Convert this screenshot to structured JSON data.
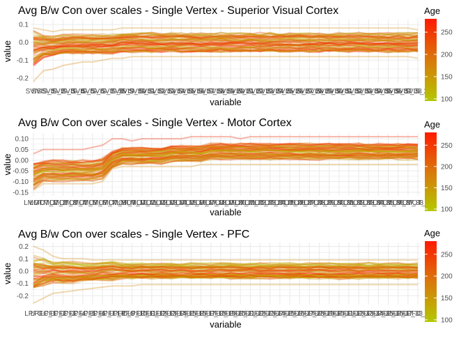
{
  "colors": {
    "low": "#b4c800",
    "mid": "#d9780c",
    "high": "#ff1a00",
    "grid": "#ebebeb"
  },
  "chart_data": [
    {
      "type": "line",
      "title": "Avg B/w Con over scales - Single Vertex - Superior Visual Cortex",
      "xlabel": "variable",
      "ylabel": "value",
      "ylim": [
        -0.22,
        0.12
      ],
      "yticks": [
        0.1,
        0.0,
        -0.1,
        -0.2
      ],
      "ytick_labels": [
        "0.1",
        "0.0",
        "-0.1",
        "-0.2"
      ],
      "x_count": 40,
      "x_tick_labels": [
        "SVIS",
        "SVIS_1",
        "SVIS_2",
        "SVIS_3",
        "SVIS_4",
        "SVIS_5",
        "SVIS_6",
        "SVIS_7",
        "SVIS_8",
        "SVIS_9",
        "SVIS_10",
        "SVIS_11",
        "SVIS_12",
        "SVIS_13",
        "SVIS_14",
        "SVIS_15",
        "SVIS_16",
        "SVIS_17",
        "SVIS_18",
        "SVIS_19",
        "SVIS_20",
        "SVIS_21",
        "SVIS_22",
        "SVIS_23",
        "SVIS_24",
        "SVIS_25",
        "SVIS_26",
        "SVIS_27",
        "SVIS_28",
        "SVIS_29",
        "SVIS_30",
        "SVIS_31",
        "SVIS_32",
        "SVIS_33",
        "SVIS_34",
        "SVIS_35",
        "SVIS_36",
        "SVIS_37",
        "SVIS_38",
        "SVIS_29"
      ],
      "color_legend": {
        "title": "Age",
        "range": [
          95,
          280
        ],
        "ticks": [
          100,
          150,
          200,
          250
        ]
      },
      "series_summary": {
        "count": 55,
        "center": [
          -0.03,
          -0.02,
          -0.02,
          -0.01,
          -0.01,
          -0.01,
          -0.01,
          -0.01,
          -0.01,
          0.0,
          0.0,
          0.0,
          0.0,
          0.0,
          0.0,
          0.0,
          0.0,
          0.0,
          0.0,
          0.0,
          0.0,
          0.0,
          0.0,
          0.0,
          0.0,
          0.0,
          0.0,
          0.0,
          0.0,
          0.0,
          0.0,
          0.0,
          0.0,
          0.0,
          0.0,
          0.0,
          0.0,
          0.0,
          0.0,
          0.0
        ],
        "spread": [
          0.09,
          0.06,
          0.05,
          0.05,
          0.05,
          0.05,
          0.05,
          0.05,
          0.05,
          0.05,
          0.05,
          0.05,
          0.05,
          0.05,
          0.05,
          0.05,
          0.05,
          0.05,
          0.05,
          0.05,
          0.05,
          0.05,
          0.05,
          0.05,
          0.05,
          0.05,
          0.05,
          0.05,
          0.05,
          0.05,
          0.05,
          0.05,
          0.05,
          0.05,
          0.05,
          0.05,
          0.05,
          0.05,
          0.05,
          0.05
        ],
        "min": [
          -0.22,
          -0.16,
          -0.15,
          -0.13,
          -0.12,
          -0.11,
          -0.11,
          -0.1,
          -0.09,
          -0.09,
          -0.08,
          -0.08,
          -0.08,
          -0.08,
          -0.08,
          -0.08,
          -0.08,
          -0.08,
          -0.08,
          -0.08,
          -0.08,
          -0.08,
          -0.08,
          -0.08,
          -0.08,
          -0.08,
          -0.08,
          -0.08,
          -0.08,
          -0.08,
          -0.08,
          -0.08,
          -0.08,
          -0.08,
          -0.08,
          -0.08,
          -0.08,
          -0.08,
          -0.08,
          -0.09
        ],
        "max": [
          0.08,
          0.07,
          0.06,
          0.07,
          0.07,
          0.07,
          0.07,
          0.07,
          0.07,
          0.08,
          0.08,
          0.08,
          0.08,
          0.08,
          0.08,
          0.08,
          0.08,
          0.08,
          0.08,
          0.08,
          0.08,
          0.08,
          0.08,
          0.08,
          0.08,
          0.08,
          0.08,
          0.08,
          0.08,
          0.08,
          0.08,
          0.08,
          0.08,
          0.08,
          0.08,
          0.08,
          0.08,
          0.08,
          0.08,
          0.07
        ]
      }
    },
    {
      "type": "line",
      "title": "Avg B/w Con over scales - Single Vertex - Motor Cortex",
      "xlabel": "variable",
      "ylabel": "value",
      "ylim": [
        -0.16,
        0.12
      ],
      "yticks": [
        0.1,
        0.05,
        0.0,
        -0.05,
        -0.1,
        -0.15
      ],
      "ytick_labels": [
        "0.10",
        "0.05",
        "0.00",
        "-0.05",
        "-0.10",
        "-0.15"
      ],
      "x_count": 40,
      "x_tick_labels": [
        "LMOT",
        "LMOT_1",
        "LMOT_2",
        "LMOT_3",
        "LMOT_4",
        "LMOT_5",
        "LMOT_6",
        "LMOT_7",
        "LMOT_8",
        "LMOT_9",
        "LMOT_10",
        "LMOT_11",
        "LMOT_12",
        "LMOT_13",
        "LMOT_14",
        "LMOT_15",
        "LMOT_16",
        "LMOT_17",
        "LMOT_18",
        "LMOT_19",
        "LMOT_20",
        "LMOT_21",
        "LMOT_22",
        "LMOT_23",
        "LMOT_24",
        "LMOT_25",
        "LMOT_26",
        "LMOT_27",
        "LMOT_28",
        "LMOT_29",
        "LMOT_30",
        "LMOT_31",
        "LMOT_32",
        "LMOT_33",
        "LMOT_34",
        "LMOT_35",
        "LMOT_36",
        "LMOT_37",
        "LMOT_38",
        "LMOT_29"
      ],
      "color_legend": {
        "title": "Age",
        "range": [
          95,
          280
        ],
        "ticks": [
          100,
          150,
          200,
          250
        ]
      },
      "series_summary": {
        "count": 55,
        "center": [
          -0.07,
          -0.05,
          -0.05,
          -0.05,
          -0.05,
          -0.05,
          -0.05,
          -0.04,
          0.0,
          0.02,
          0.02,
          0.02,
          0.02,
          0.02,
          0.03,
          0.03,
          0.03,
          0.03,
          0.04,
          0.04,
          0.04,
          0.04,
          0.04,
          0.04,
          0.04,
          0.04,
          0.04,
          0.04,
          0.04,
          0.04,
          0.04,
          0.04,
          0.04,
          0.04,
          0.04,
          0.04,
          0.04,
          0.04,
          0.04,
          0.04
        ],
        "spread": [
          0.06,
          0.045,
          0.045,
          0.045,
          0.045,
          0.045,
          0.045,
          0.045,
          0.04,
          0.035,
          0.035,
          0.035,
          0.035,
          0.035,
          0.035,
          0.035,
          0.035,
          0.035,
          0.035,
          0.035,
          0.035,
          0.035,
          0.035,
          0.035,
          0.035,
          0.035,
          0.035,
          0.035,
          0.035,
          0.035,
          0.035,
          0.035,
          0.035,
          0.035,
          0.035,
          0.035,
          0.035,
          0.035,
          0.035,
          0.035
        ],
        "min": [
          -0.14,
          -0.11,
          -0.11,
          -0.11,
          -0.11,
          -0.11,
          -0.11,
          -0.1,
          -0.04,
          -0.03,
          -0.03,
          -0.03,
          -0.03,
          -0.03,
          -0.03,
          -0.03,
          -0.03,
          -0.02,
          -0.02,
          -0.02,
          -0.02,
          -0.02,
          -0.02,
          -0.02,
          -0.02,
          -0.02,
          -0.02,
          -0.02,
          -0.02,
          -0.02,
          -0.02,
          -0.02,
          -0.02,
          -0.02,
          -0.02,
          -0.02,
          -0.02,
          -0.02,
          -0.02,
          -0.02
        ],
        "max": [
          0.03,
          0.05,
          0.05,
          0.05,
          0.05,
          0.05,
          0.06,
          0.07,
          0.1,
          0.1,
          0.09,
          0.1,
          0.1,
          0.1,
          0.1,
          0.1,
          0.11,
          0.11,
          0.11,
          0.11,
          0.11,
          0.1,
          0.11,
          0.11,
          0.11,
          0.11,
          0.11,
          0.11,
          0.11,
          0.11,
          0.11,
          0.11,
          0.11,
          0.11,
          0.11,
          0.11,
          0.11,
          0.11,
          0.11,
          0.11
        ]
      }
    },
    {
      "type": "line",
      "title": "Avg B/w Con over scales - Single Vertex - PFC",
      "xlabel": "variable",
      "ylabel": "value",
      "ylim": [
        -0.26,
        0.22
      ],
      "yticks": [
        0.2,
        0.1,
        0.0,
        -0.1,
        -0.2
      ],
      "ytick_labels": [
        "0.2",
        "0.1",
        "0.0",
        "-0.1",
        "-0.2"
      ],
      "x_count": 40,
      "x_tick_labels": [
        "LPFC",
        "LPFC_1",
        "LPFC_2",
        "LPFC_3",
        "LPFC_4",
        "LPFC_5",
        "LPFC_6",
        "LPFC_7",
        "LPFC_8",
        "LPFC_9",
        "LPFC_10",
        "LPFC_11",
        "LPFC_12",
        "LPFC_13",
        "LPFC_14",
        "LPFC_15",
        "LPFC_16",
        "LPFC_17",
        "LPFC_18",
        "LPFC_19",
        "LPFC_20",
        "LPFC_21",
        "LPFC_22",
        "LPFC_23",
        "LPFC_24",
        "LPFC_25",
        "LPFC_26",
        "LPFC_27",
        "LPFC_28",
        "LPFC_29",
        "LPFC_30",
        "LPFC_31",
        "LPFC_32",
        "LPFC_33",
        "LPFC_34",
        "LPFC_35",
        "LPFC_36",
        "LPFC_37",
        "LPFC_38",
        "LPFC_29"
      ],
      "color_legend": {
        "title": "Age",
        "range": [
          95,
          280
        ],
        "ticks": [
          100,
          150,
          200,
          250
        ]
      },
      "series_summary": {
        "count": 55,
        "center": [
          -0.02,
          -0.01,
          -0.01,
          -0.01,
          -0.01,
          -0.01,
          -0.01,
          0.0,
          0.0,
          0.0,
          0.0,
          0.0,
          0.0,
          0.0,
          0.0,
          0.0,
          0.0,
          0.0,
          0.0,
          0.0,
          0.0,
          0.0,
          0.0,
          0.0,
          0.0,
          0.0,
          0.0,
          0.0,
          0.0,
          0.0,
          0.0,
          0.0,
          0.0,
          0.0,
          0.0,
          0.0,
          0.0,
          0.0,
          0.0,
          0.0
        ],
        "spread": [
          0.13,
          0.1,
          0.08,
          0.08,
          0.08,
          0.07,
          0.07,
          0.07,
          0.07,
          0.06,
          0.06,
          0.06,
          0.06,
          0.06,
          0.06,
          0.06,
          0.06,
          0.06,
          0.06,
          0.06,
          0.06,
          0.06,
          0.06,
          0.06,
          0.06,
          0.06,
          0.06,
          0.06,
          0.06,
          0.06,
          0.06,
          0.06,
          0.06,
          0.06,
          0.06,
          0.06,
          0.06,
          0.06,
          0.06,
          0.06
        ],
        "min": [
          -0.26,
          -0.22,
          -0.18,
          -0.17,
          -0.16,
          -0.15,
          -0.14,
          -0.13,
          -0.12,
          -0.12,
          -0.12,
          -0.11,
          -0.11,
          -0.11,
          -0.11,
          -0.11,
          -0.11,
          -0.11,
          -0.11,
          -0.11,
          -0.11,
          -0.11,
          -0.11,
          -0.11,
          -0.11,
          -0.11,
          -0.11,
          -0.11,
          -0.11,
          -0.11,
          -0.11,
          -0.11,
          -0.11,
          -0.11,
          -0.11,
          -0.11,
          -0.11,
          -0.11,
          -0.11,
          -0.11
        ],
        "max": [
          0.2,
          0.17,
          0.12,
          0.1,
          0.1,
          0.1,
          0.09,
          0.09,
          0.09,
          0.09,
          0.09,
          0.09,
          0.09,
          0.09,
          0.09,
          0.09,
          0.09,
          0.09,
          0.09,
          0.09,
          0.09,
          0.09,
          0.09,
          0.09,
          0.09,
          0.09,
          0.09,
          0.09,
          0.09,
          0.09,
          0.09,
          0.09,
          0.09,
          0.09,
          0.09,
          0.09,
          0.09,
          0.09,
          0.09,
          0.09
        ]
      }
    }
  ]
}
